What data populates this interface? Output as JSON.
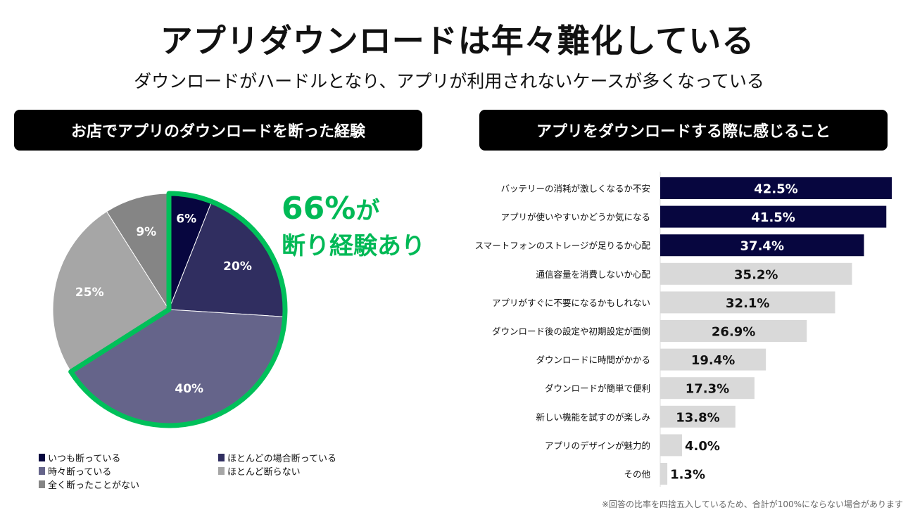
{
  "header": {
    "title": "アプリダウンロードは年々難化している",
    "subtitle": "ダウンロードがハードルとなり、アプリが利用されないケースが多くなっている"
  },
  "callout": {
    "line1_num": "66%",
    "line1_suffix": "が",
    "line2": "断り経験あり"
  },
  "footnote": "※回答の比率を四捨五入しているため、合計が100%にならない場合があります",
  "colors": {
    "green": "#00c05a",
    "navy": "#07063f",
    "grey_bar": "#d9d9d9"
  },
  "chart_data": [
    {
      "type": "pie",
      "title": "お店でアプリのダウンロードを断った経験",
      "slices": [
        {
          "label": "いつも断っている",
          "value": 6,
          "display": "6%",
          "color": "#07063f"
        },
        {
          "label": "ほとんどの場合断っている",
          "value": 20,
          "display": "20%",
          "color": "#302e60"
        },
        {
          "label": "時々断っている",
          "value": 40,
          "display": "40%",
          "color": "#65648a"
        },
        {
          "label": "ほとんど断らない",
          "value": 25,
          "display": "25%",
          "color": "#a6a6a6"
        },
        {
          "label": "全く断ったことがない",
          "value": 9,
          "display": "9%",
          "color": "#858585"
        }
      ],
      "highlight_total": 66,
      "legend": "bottom"
    },
    {
      "type": "bar",
      "orientation": "horizontal",
      "title": "アプリをダウンロードする際に感じること",
      "categories": [
        "バッテリーの消耗が激しくなるか不安",
        "アプリが使いやすいかどうか気になる",
        "スマートフォンのストレージが足りるか心配",
        "通信容量を消費しないか心配",
        "アプリがすぐに不要になるかもしれない",
        "ダウンロード後の設定や初期設定が面倒",
        "ダウンロードに時間がかかる",
        "ダウンロードが簡単で便利",
        "新しい機能を試すのが楽しみ",
        "アプリのデザインが魅力的",
        "その他"
      ],
      "values": [
        42.5,
        41.5,
        37.4,
        35.2,
        32.1,
        26.9,
        19.4,
        17.3,
        13.8,
        4.0,
        1.3
      ],
      "labels": [
        "42.5%",
        "41.5%",
        "37.4%",
        "35.2%",
        "32.1%",
        "26.9%",
        "19.4%",
        "17.3%",
        "13.8%",
        "4.0%",
        "1.3%"
      ],
      "highlighted_top": 3,
      "xlim": [
        0,
        42.5
      ]
    }
  ]
}
